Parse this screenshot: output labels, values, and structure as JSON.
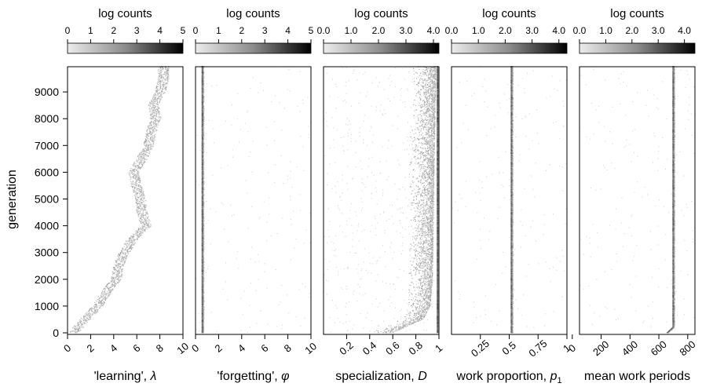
{
  "chart_data": {
    "type": "heatmap",
    "y_axis": {
      "label": "generation",
      "range": [
        0,
        10000
      ],
      "ticks": [
        0,
        1000,
        2000,
        3000,
        4000,
        5000,
        6000,
        7000,
        8000,
        9000
      ]
    },
    "panels": [
      {
        "id": "learning",
        "xlabel_text": "'learning', ",
        "xlabel_symbol": "λ",
        "xlim": [
          0,
          10
        ],
        "xticks": [
          0,
          2,
          4,
          6,
          8,
          10
        ],
        "colorbar": {
          "title": "log counts",
          "range": [
            0,
            5
          ],
          "ticks": [
            "0",
            "1",
            "2",
            "3",
            "4",
            "5"
          ]
        },
        "density_trend": [
          [
            0,
            0.5
          ],
          [
            500,
            1.5
          ],
          [
            1000,
            2.6
          ],
          [
            1500,
            3.3
          ],
          [
            2000,
            4.2
          ],
          [
            2500,
            4.4
          ],
          [
            3000,
            4.9
          ],
          [
            3500,
            5.6
          ],
          [
            4000,
            6.8
          ],
          [
            4500,
            6.4
          ],
          [
            5000,
            6.3
          ],
          [
            5500,
            5.9
          ],
          [
            6000,
            5.7
          ],
          [
            6500,
            6.4
          ],
          [
            7000,
            7.0
          ],
          [
            7500,
            7.2
          ],
          [
            8000,
            7.6
          ],
          [
            8500,
            7.4
          ],
          [
            9000,
            8.0
          ],
          [
            9500,
            8.3
          ],
          [
            9900,
            8.3
          ]
        ]
      },
      {
        "id": "forgetting",
        "xlabel_text": "'forgetting', ",
        "xlabel_symbol": "φ",
        "xlim": [
          0,
          10
        ],
        "xticks": [
          0,
          2,
          4,
          6,
          8,
          10
        ],
        "colorbar": {
          "title": "log counts",
          "range": [
            0,
            5
          ],
          "ticks": [
            "0",
            "1",
            "2",
            "3",
            "4",
            "5"
          ]
        },
        "density_trend": [
          [
            0,
            0.6
          ],
          [
            5000,
            0.6
          ],
          [
            9900,
            0.6
          ]
        ]
      },
      {
        "id": "specialization",
        "xlabel_text": "specialization, ",
        "xlabel_symbol": "D",
        "xlim": [
          0,
          1
        ],
        "xticks": [
          0.2,
          0.4,
          0.6,
          0.8,
          1
        ],
        "colorbar": {
          "title": "log counts",
          "range": [
            0,
            4.2
          ],
          "ticks": [
            "0.0",
            "1.0",
            "2.0",
            "3.0",
            "4.0"
          ]
        },
        "density_trend": [
          [
            0,
            0.6
          ],
          [
            500,
            0.86
          ],
          [
            1000,
            0.92
          ],
          [
            2000,
            0.94
          ],
          [
            5000,
            0.95
          ],
          [
            9900,
            0.97
          ]
        ]
      },
      {
        "id": "work_proportion",
        "xlabel_text": "work proportion, ",
        "xlabel_symbol": "p",
        "xlabel_sub": "1",
        "xlim": [
          0,
          1
        ],
        "xticks": [
          0.25,
          0.5,
          0.75,
          1
        ],
        "colorbar": {
          "title": "log counts",
          "range": [
            0,
            4.3
          ],
          "ticks": [
            "0.0",
            "1.0",
            "2.0",
            "3.0",
            "4.0"
          ]
        },
        "density_trend": [
          [
            0,
            0.52
          ],
          [
            5000,
            0.52
          ],
          [
            9900,
            0.52
          ]
        ]
      },
      {
        "id": "mean_work_periods",
        "xlabel_text": "mean work periods",
        "xlim": [
          50,
          850
        ],
        "xticks": [
          0,
          200,
          400,
          600,
          800
        ],
        "colorbar": {
          "title": "log counts",
          "range": [
            0,
            4.4
          ],
          "ticks": [
            "0.0",
            "1.0",
            "2.0",
            "3.0",
            "4.0"
          ]
        },
        "density_trend": [
          [
            0,
            660
          ],
          [
            200,
            700
          ],
          [
            5000,
            700
          ],
          [
            9900,
            700
          ]
        ]
      }
    ]
  }
}
